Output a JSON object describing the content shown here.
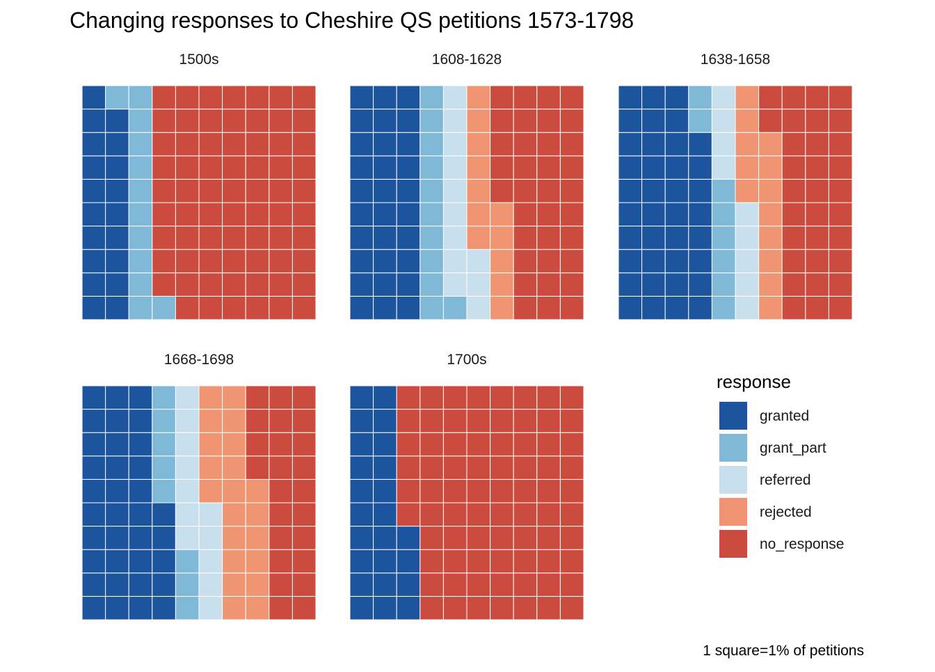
{
  "chart_data": {
    "type": "waffle",
    "title": "Changing responses to Cheshire QS petitions 1573-1798",
    "caption": "1 square=1% of petitions",
    "legend": {
      "title": "response",
      "position": "right",
      "entries": [
        {
          "key": "granted",
          "label": "granted",
          "color": "#1C549E"
        },
        {
          "key": "grant_part",
          "label": "grant_part",
          "color": "#80B8D8"
        },
        {
          "key": "referred",
          "label": "referred",
          "color": "#C8DFEE"
        },
        {
          "key": "rejected",
          "label": "rejected",
          "color": "#F09572"
        },
        {
          "key": "no_response",
          "label": "no_response",
          "color": "#CB4B3E"
        }
      ]
    },
    "grid": {
      "rows": 10,
      "cols": 10,
      "fill_order": "column-major, bottom-to-top"
    },
    "panels": [
      {
        "label": "1500s",
        "values": {
          "granted": 19,
          "grant_part": 12,
          "referred": 0,
          "rejected": 0,
          "no_response": 69
        }
      },
      {
        "label": "1608-1628",
        "values": {
          "granted": 30,
          "grant_part": 11,
          "referred": 12,
          "rejected": 12,
          "no_response": 35
        }
      },
      {
        "label": "1638-1658",
        "values": {
          "granted": 38,
          "grant_part": 8,
          "referred": 9,
          "rejected": 13,
          "no_response": 32
        }
      },
      {
        "label": "1668-1698",
        "values": {
          "granted": 35,
          "grant_part": 8,
          "referred": 12,
          "rejected": 21,
          "no_response": 24
        }
      },
      {
        "label": "1700s",
        "values": {
          "granted": 24,
          "grant_part": 0,
          "referred": 0,
          "rejected": 0,
          "no_response": 76
        }
      }
    ]
  }
}
